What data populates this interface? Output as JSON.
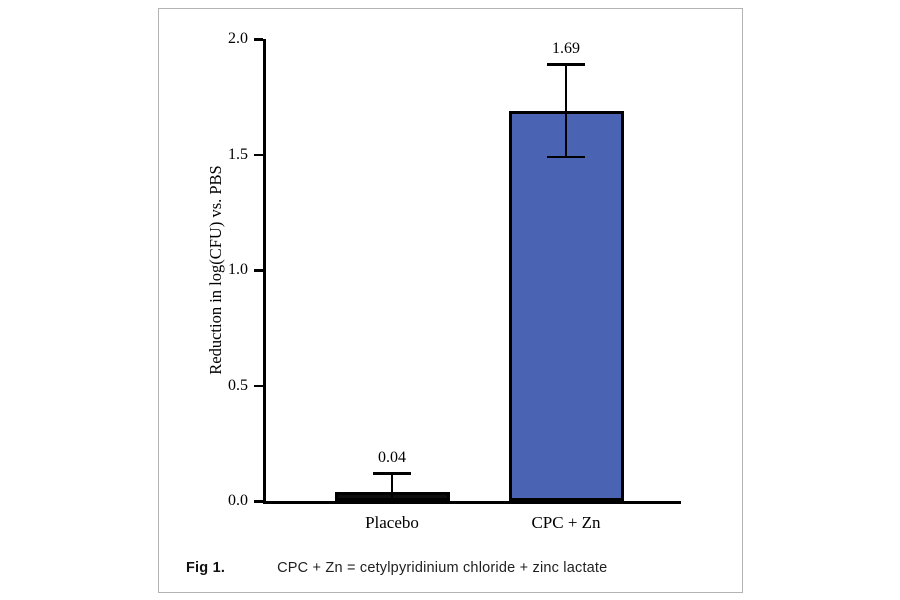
{
  "figure": {
    "caption_label": "Fig 1.",
    "caption_text": "CPC + Zn = cetylpyridinium chloride + zinc lactate"
  },
  "chart_data": {
    "type": "bar",
    "title": "",
    "ylabel": "Reduction in log(CFU) vs. PBS",
    "xlabel": "",
    "categories": [
      "Placebo",
      "CPC + Zn"
    ],
    "values": [
      0.04,
      1.69
    ],
    "errors": [
      0.08,
      0.2
    ],
    "data_labels": [
      "0.04",
      "1.69"
    ],
    "bar_colors": [
      "#0d0d0d",
      "#4a63b2"
    ],
    "ylim": [
      0,
      2.0
    ],
    "yticks": [
      0,
      0.5,
      1.0,
      1.5,
      2.0
    ],
    "ytick_labels": [
      "0.0",
      "0.5",
      "1.0",
      "1.5",
      "2.0"
    ],
    "grid": false,
    "legend_position": "none",
    "error_bar_style": "caps"
  }
}
